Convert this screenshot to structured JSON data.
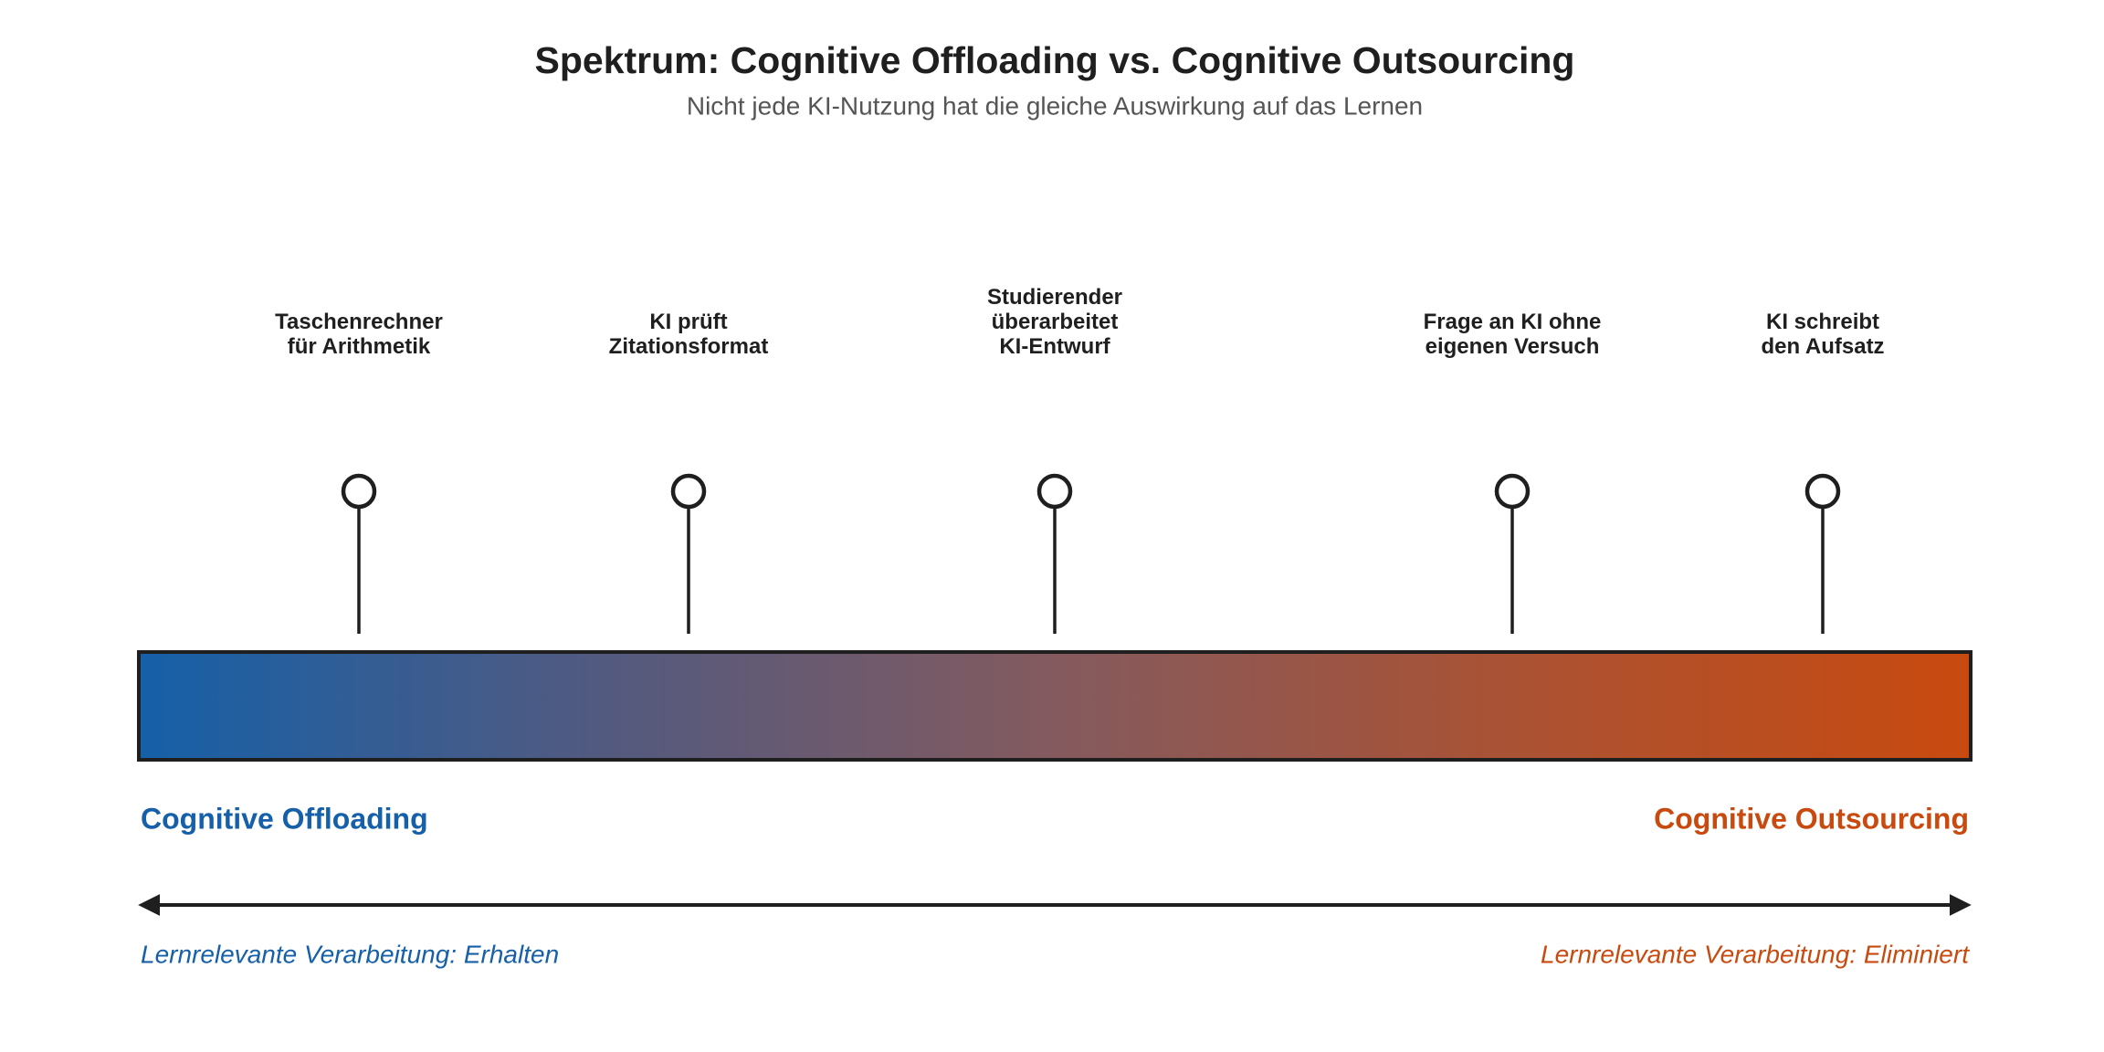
{
  "header": {
    "title": "Spektrum: Cognitive Offloading vs. Cognitive Outsourcing",
    "subtitle": "Nicht jede KI-Nutzung hat die gleiche Auswirkung auf das Lernen"
  },
  "markers": [
    {
      "label": [
        "Taschenrechner",
        "für Arithmetik"
      ]
    },
    {
      "label": [
        "KI prüft",
        "Zitationsformat"
      ]
    },
    {
      "label": [
        "Studierender",
        "überarbeitet",
        "KI-Entwurf"
      ]
    },
    {
      "label": [
        "Frage an KI ohne",
        "eigenen Versuch"
      ]
    },
    {
      "label": [
        "KI schreibt",
        "den Aufsatz"
      ]
    }
  ],
  "ends": {
    "left": {
      "title": "Cognitive Offloading",
      "note": "Lernrelevante Verarbeitung: Erhalten"
    },
    "right": {
      "title": "Cognitive Outsourcing",
      "note": "Lernrelevante Verarbeitung: Eliminiert"
    }
  }
}
